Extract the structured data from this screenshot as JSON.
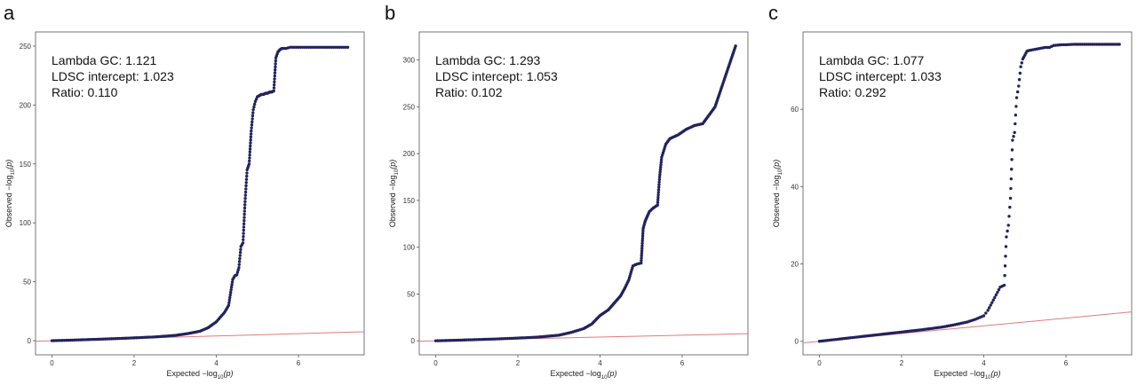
{
  "chart_data": [
    {
      "panel": "a",
      "type": "scatter",
      "xlabel": "Expected −log",
      "ylabel": "Observed −log",
      "label_sub": "10",
      "label_var": "(p)",
      "xlim": [
        -0.4,
        7.6
      ],
      "ylim": [
        -12,
        262
      ],
      "xticks": [
        "0",
        "2",
        "4",
        "6"
      ],
      "yticks": [
        "0",
        "50",
        "100",
        "150",
        "200",
        "250"
      ],
      "xtick_values": [
        0,
        2,
        4,
        6
      ],
      "ytick_values": [
        0,
        50,
        100,
        150,
        200,
        250
      ],
      "annotations": [
        "Lambda GC: 1.121",
        "LDSC intercept: 1.023",
        "Ratio: 0.110"
      ],
      "reference_line": {
        "x": [
          -0.4,
          7.6
        ],
        "y": [
          -0.4,
          7.6
        ],
        "color": "#e07b7b"
      },
      "point_color": "#22225e",
      "series": [
        {
          "x": [
            0,
            0.5,
            1,
            1.5,
            2,
            2.5,
            3,
            3.3,
            3.6,
            3.8,
            4,
            4.1,
            4.2,
            4.3,
            4.4,
            4.45,
            4.5,
            4.55,
            4.6,
            4.65,
            4.7,
            4.75,
            4.8,
            4.85,
            4.9,
            4.95,
            5.0,
            5.05,
            5.1,
            5.15,
            5.2,
            5.25,
            5.3,
            5.35,
            5.4,
            5.45,
            5.5,
            5.55,
            5.6,
            5.7,
            5.8,
            5.9,
            6.0,
            6.1,
            6.2,
            6.4,
            6.6,
            7.2
          ],
          "y": [
            0,
            0.5,
            1.1,
            1.7,
            2.4,
            3.2,
            4.5,
            6,
            8,
            11,
            16,
            20,
            24,
            30,
            52,
            55,
            56,
            62,
            80,
            83,
            118,
            145,
            150,
            178,
            196,
            203,
            207,
            208,
            209,
            209,
            210,
            210,
            211,
            211,
            212,
            240,
            245,
            247,
            248,
            248,
            249,
            249,
            249,
            249,
            249,
            249,
            249,
            249
          ]
        }
      ]
    },
    {
      "panel": "b",
      "type": "scatter",
      "xlabel": "Expected −log",
      "ylabel": "Observed −log",
      "label_sub": "10",
      "label_var": "(p)",
      "xlim": [
        -0.4,
        7.6
      ],
      "ylim": [
        -15,
        330
      ],
      "xticks": [
        "0",
        "2",
        "4",
        "6"
      ],
      "yticks": [
        "0",
        "50",
        "100",
        "150",
        "200",
        "250",
        "300"
      ],
      "xtick_values": [
        0,
        2,
        4,
        6
      ],
      "ytick_values": [
        0,
        50,
        100,
        150,
        200,
        250,
        300
      ],
      "annotations": [
        "Lambda GC: 1.293",
        "LDSC intercept: 1.053",
        "Ratio: 0.102"
      ],
      "reference_line": {
        "x": [
          -0.4,
          7.6
        ],
        "y": [
          -0.4,
          7.6
        ],
        "color": "#e07b7b"
      },
      "point_color": "#22225e",
      "series": [
        {
          "x": [
            0,
            0.5,
            1,
            1.5,
            2,
            2.5,
            3,
            3.3,
            3.6,
            3.8,
            4,
            4.2,
            4.4,
            4.5,
            4.6,
            4.7,
            4.8,
            4.9,
            5.0,
            5.05,
            5.1,
            5.15,
            5.2,
            5.3,
            5.4,
            5.45,
            5.5,
            5.55,
            5.6,
            5.7,
            5.8,
            5.9,
            6.0,
            6.1,
            6.3,
            6.5,
            6.8,
            7.3
          ],
          "y": [
            0,
            0.6,
            1.3,
            2,
            2.9,
            4,
            6,
            9,
            13,
            18,
            27,
            33,
            43,
            48,
            56,
            65,
            80,
            82,
            83,
            120,
            128,
            133,
            138,
            142,
            145,
            175,
            196,
            203,
            210,
            216,
            218,
            220,
            223,
            226,
            230,
            232,
            250,
            315
          ]
        }
      ]
    },
    {
      "panel": "c",
      "type": "scatter",
      "xlabel": "Expected −log",
      "ylabel": "Observed −log",
      "label_sub": "10",
      "label_var": "(p)",
      "xlim": [
        -0.4,
        7.6
      ],
      "ylim": [
        -3.5,
        80
      ],
      "xticks": [
        "0",
        "2",
        "4",
        "6"
      ],
      "yticks": [
        "0",
        "20",
        "40",
        "60"
      ],
      "xtick_values": [
        0,
        2,
        4,
        6
      ],
      "ytick_values": [
        0,
        20,
        40,
        60
      ],
      "annotations": [
        "Lambda GC: 1.077",
        "LDSC intercept: 1.033",
        "Ratio: 0.292"
      ],
      "reference_line": {
        "x": [
          -0.4,
          7.6
        ],
        "y": [
          -0.4,
          7.6
        ],
        "color": "#e07b7b"
      },
      "point_color": "#22225e",
      "series": [
        {
          "x": [
            0,
            0.5,
            1,
            1.5,
            2,
            2.5,
            3,
            3.3,
            3.6,
            3.8,
            4,
            4.1,
            4.2,
            4.3,
            4.4,
            4.5,
            4.55,
            4.6,
            4.65,
            4.7,
            4.75,
            4.8,
            4.85,
            4.9,
            4.95,
            5.0,
            5.05,
            5.1,
            5.2,
            5.3,
            5.4,
            5.5,
            5.6,
            5.7,
            5.8,
            5.9,
            6.0,
            6.2,
            6.5,
            7.3
          ],
          "y": [
            0,
            0.6,
            1.2,
            1.8,
            2.4,
            3.0,
            3.7,
            4.3,
            5.0,
            5.7,
            6.6,
            8,
            10,
            12,
            14,
            14.5,
            27,
            30,
            37,
            52,
            54,
            63,
            66,
            71,
            73,
            74,
            75,
            75.2,
            75.4,
            75.6,
            75.8,
            76,
            76,
            76.5,
            76.6,
            76.7,
            76.7,
            76.8,
            76.8,
            76.8
          ]
        }
      ]
    }
  ]
}
